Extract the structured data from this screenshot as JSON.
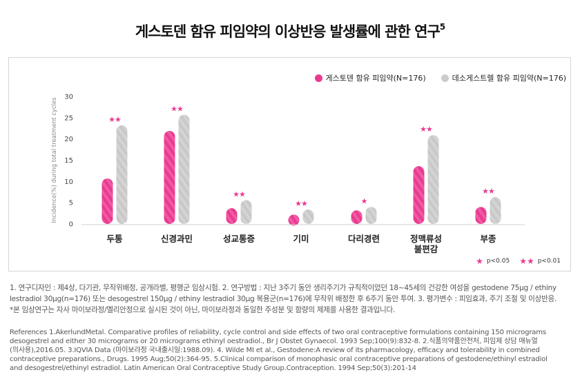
{
  "title": {
    "text": "게스토덴 함유 피임약의 이상반응 발생률에 관한 연구",
    "superscript": "5"
  },
  "legend": {
    "items": [
      {
        "label": "게스토덴 함유 피임약(N=176)",
        "color": "#ea3a90"
      },
      {
        "label": "데소게스트렐 함유 피임약(N=176)",
        "color": "#cccccc"
      }
    ]
  },
  "significance_legend": [
    {
      "symbol": "★",
      "label": "p<0.05"
    },
    {
      "symbol": "★★",
      "label": "p<0.01"
    }
  ],
  "chart_data": {
    "type": "bar",
    "ylabel": "Incidence(%) during total treatment cycles",
    "ylim": [
      0,
      30
    ],
    "yticks": [
      0,
      5,
      10,
      15,
      20,
      25,
      30
    ],
    "grid": false,
    "legend_position": "top-right",
    "categories": [
      "두통",
      "신경과민",
      "성교통증",
      "기미",
      "다리경련",
      "정맥류성\n불편감",
      "부종"
    ],
    "series": [
      {
        "name": "게스토덴 함유 피임약(N=176)",
        "color": "#ea3a90",
        "values": [
          10.7,
          21.9,
          3.7,
          2.2,
          3.2,
          13.6,
          4.0
        ]
      },
      {
        "name": "데소게스트렐 함유 피임약(N=176)",
        "color": "#cccccc",
        "values": [
          23.2,
          25.7,
          5.6,
          3.4,
          4.0,
          20.9,
          6.3
        ]
      }
    ],
    "significance": [
      "★★",
      "★★",
      "★★",
      "★★",
      "★",
      "★★",
      "★★"
    ]
  },
  "notes": {
    "line1": "1. 연구디자인 : 제4상, 다기관, 무작위배정, 공개라벨, 평행군 임상시험. 2. 연구방법 : 지난 3주기 동안 생리주기가 규칙적이었던  18~45세의 건강한 여성을 gestodene 75μg / ethiny",
    "line2": "lestradiol 30μg(n=176) 또는 desogestrel 150μg / ethiny lestradiol 30μg 복용군(n=176)에 무작위 배정한 후 6주기 동안 투여. 3. 평가변수 : 피임효과, 주기 조절 및 이상반응.",
    "line3": "*본 임상연구는 자사 마이보라정/멜리안정으로 실시된 것이 아닌,  마이보라정과 동일한 주성분 및 함량의 제제를 사용한 결과입니다."
  },
  "references": {
    "line1": "References 1.AkerlundMetal. Comparative profiles of reliability, cycle control and side effects of two oral contraceptive formulations containing 150 micrograms",
    "line2": "desogestrel and either 30 micrograms or 20 micrograms ethinyl oestradiol., Br J Obstet Gynaecol. 1993 Sep;100(9):832-8. 2.식품의약품안전처, 피임제 상담 매뉴얼",
    "line3": "(의사용),2016.05. 3.IQVIA Data (마이보라정 국내출시일:1988.09). 4. Wilde MI et al., Gestodene:A review of its pharmacology, efficacy and tolerability in combined",
    "line4": "contraceptive preparations., Drugs. 1995 Aug;50(2):364-95. 5.Clinical comparison of monophasic oral contraceptive preparations of gestodene/ethinyl estradiol",
    "line5": "and desogestrel/ethinyl estradiol. Latin American Oral Contraceptive Study Group.Contraception. 1994 Sep;50(3):201-14"
  }
}
